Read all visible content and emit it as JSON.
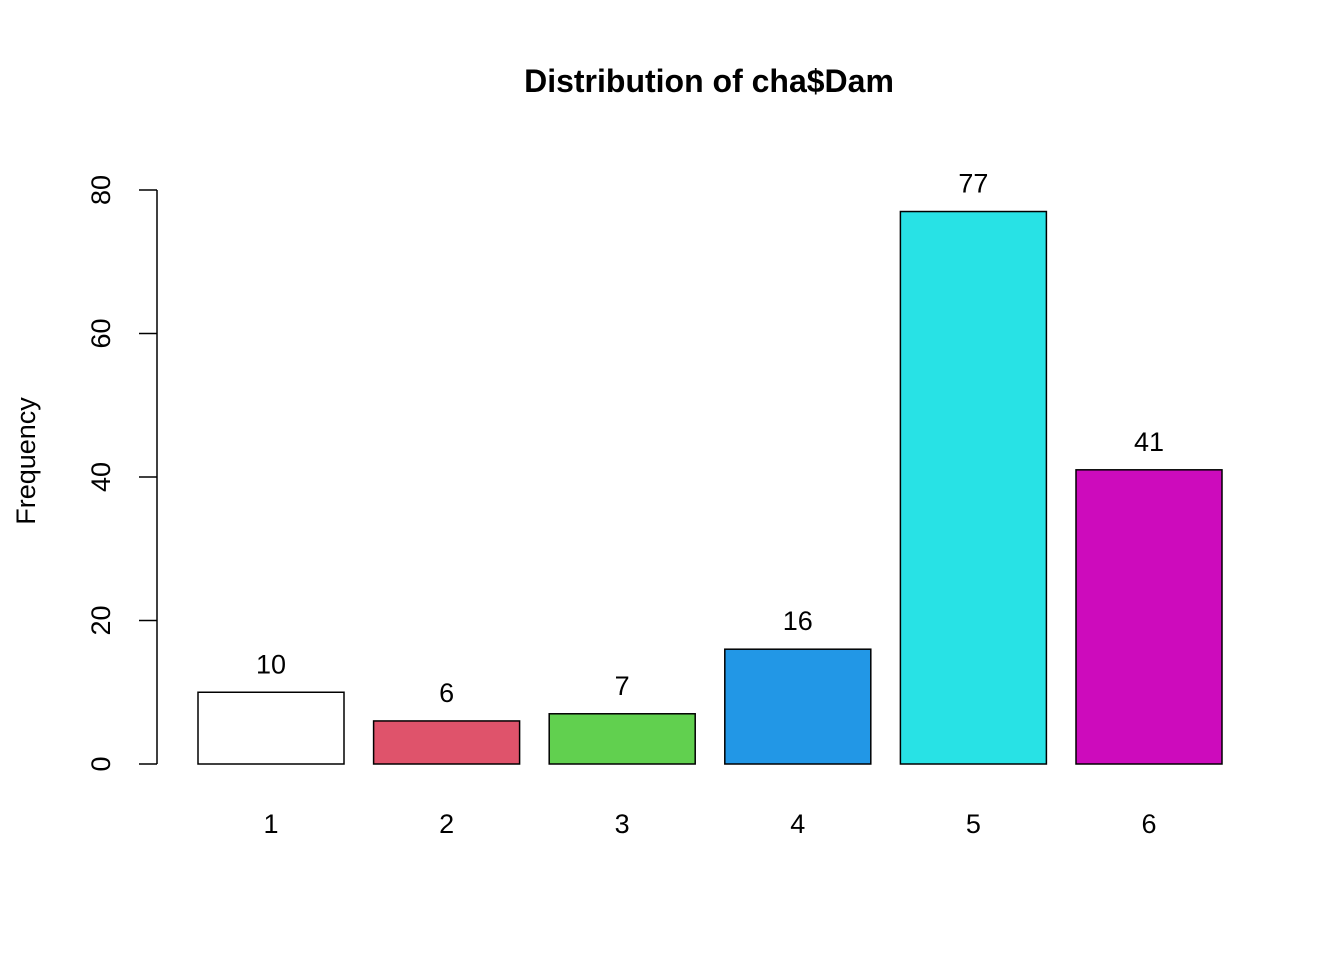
{
  "chart_data": {
    "type": "bar",
    "title": "Distribution of cha$Dam",
    "xlabel": "",
    "ylabel": "Frequency",
    "categories": [
      "1",
      "2",
      "3",
      "4",
      "5",
      "6"
    ],
    "values": [
      10,
      6,
      7,
      16,
      77,
      41
    ],
    "data_labels": [
      "10",
      "6",
      "7",
      "16",
      "77",
      "41"
    ],
    "colors": [
      "#FFFFFF",
      "#DF536B",
      "#61D04F",
      "#2297E6",
      "#28E2E5",
      "#CD0BBC"
    ],
    "ylim": [
      0,
      80
    ],
    "yticks": [
      "0",
      "20",
      "40",
      "60",
      "80"
    ],
    "grid": false,
    "legend": "none"
  }
}
